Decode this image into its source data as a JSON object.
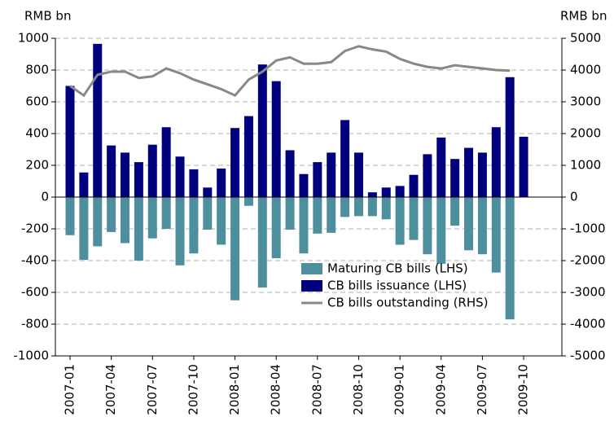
{
  "chart_data": {
    "type": "bar",
    "y_label": "RMB bn",
    "y2_label": "RMB bn",
    "categories": [
      "2007-01",
      null,
      null,
      "2007-04",
      null,
      null,
      "2007-07",
      null,
      null,
      "2007-10",
      null,
      null,
      "2008-01",
      null,
      null,
      "2008-04",
      null,
      null,
      "2008-07",
      null,
      null,
      "2008-10",
      null,
      null,
      "2009-01",
      null,
      null,
      "2009-04",
      null,
      null,
      "2009-07",
      null,
      null,
      "2009-10"
    ],
    "series": [
      {
        "name": "Maturing CB bills (LHS)",
        "color": "#4e8f9e",
        "kind": "bar",
        "values": [
          -240,
          -395,
          -310,
          -220,
          -290,
          -400,
          -260,
          -200,
          -430,
          -355,
          -205,
          -300,
          -650,
          -55,
          -570,
          -385,
          -205,
          -355,
          -230,
          -225,
          -125,
          -120,
          -120,
          -140,
          -300,
          -270,
          -360,
          -420,
          -180,
          -335,
          -360,
          -475,
          -770,
          null
        ]
      },
      {
        "name": "CB bills issuance (LHS)",
        "color": "#00007f",
        "kind": "bar",
        "values": [
          700,
          155,
          965,
          325,
          280,
          220,
          330,
          440,
          255,
          175,
          60,
          180,
          435,
          510,
          835,
          730,
          295,
          145,
          220,
          280,
          485,
          280,
          30,
          60,
          70,
          140,
          270,
          375,
          240,
          310,
          280,
          440,
          755,
          380
        ]
      },
      {
        "name": "CB bills outstanding (RHS)",
        "color": "#888888",
        "kind": "line",
        "axis": "y2",
        "values": [
          3500,
          3200,
          3850,
          3950,
          3950,
          3750,
          3800,
          4050,
          3900,
          3700,
          3550,
          3400,
          3200,
          3700,
          3950,
          4300,
          4400,
          4200,
          4200,
          4250,
          4600,
          4750,
          4650,
          4580,
          4350,
          4200,
          4100,
          4050,
          4150,
          4100,
          4050,
          4000,
          3980,
          null
        ]
      }
    ],
    "ylim": [
      -1000,
      1000
    ],
    "yticks": [
      -1000,
      -800,
      -600,
      -400,
      -200,
      0,
      200,
      400,
      600,
      800,
      1000
    ],
    "y2lim": [
      -5000,
      5000
    ],
    "y2ticks": [
      -5000,
      -4000,
      -3000,
      -2000,
      -1000,
      0,
      1000,
      2000,
      3000,
      4000,
      5000
    ],
    "grid": true
  }
}
